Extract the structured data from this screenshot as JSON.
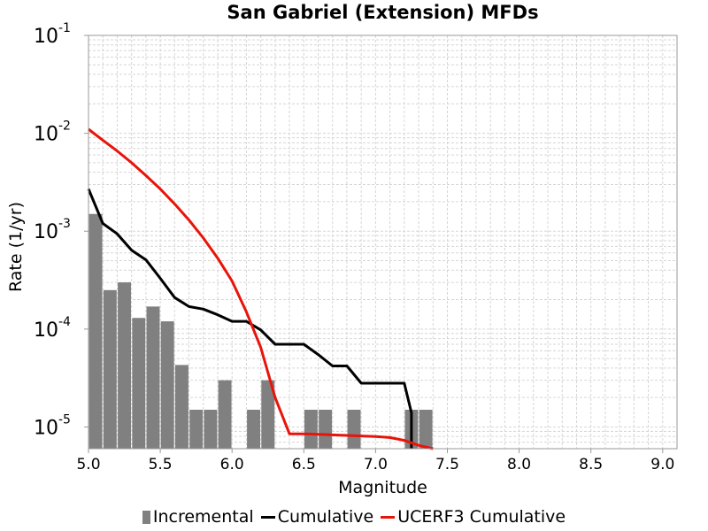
{
  "colors": {
    "incremental": "#808080",
    "cumulative": "#000000",
    "ucerf3": "#e8140a",
    "grid": "#d6d6d6",
    "axis": "#999999"
  },
  "chart_data": {
    "type": "bar",
    "title": "San Gabriel (Extension) MFDs",
    "xlabel": "Magnitude",
    "ylabel": "Rate (1/yr)",
    "xlim": [
      5.0,
      9.1
    ],
    "ylim": [
      6e-06,
      0.1
    ],
    "yscale": "log",
    "grid": true,
    "legend_position": "bottom",
    "x_ticks": [
      "5.0",
      "5.5",
      "6.0",
      "6.5",
      "7.0",
      "7.5",
      "8.0",
      "8.5",
      "9.0"
    ],
    "y_ticks": [
      {
        "base": "10",
        "exp": "-1",
        "value": 0.1
      },
      {
        "base": "10",
        "exp": "-2",
        "value": 0.01
      },
      {
        "base": "10",
        "exp": "-3",
        "value": 0.001
      },
      {
        "base": "10",
        "exp": "-4",
        "value": 0.0001
      },
      {
        "base": "10",
        "exp": "-5",
        "value": 1e-05
      }
    ],
    "legend": [
      "Incremental",
      "Cumulative",
      "UCERF3 Cumulative"
    ],
    "series": [
      {
        "name": "Incremental",
        "type": "bar",
        "x": [
          5.05,
          5.15,
          5.25,
          5.35,
          5.45,
          5.55,
          5.65,
          5.75,
          5.85,
          5.95,
          6.15,
          6.25,
          6.55,
          6.65,
          6.85,
          7.25,
          7.35
        ],
        "values": [
          0.0015,
          0.00025,
          0.0003,
          0.00013,
          0.00017,
          0.00012,
          4.3e-05,
          1.5e-05,
          1.5e-05,
          3e-05,
          1.5e-05,
          3e-05,
          1.5e-05,
          1.5e-05,
          1.5e-05,
          1.5e-05,
          1.5e-05
        ]
      },
      {
        "name": "Cumulative",
        "type": "line",
        "x": [
          5.0,
          5.1,
          5.2,
          5.3,
          5.4,
          5.5,
          5.6,
          5.7,
          5.8,
          5.9,
          6.0,
          6.1,
          6.2,
          6.3,
          6.4,
          6.5,
          6.6,
          6.7,
          6.8,
          6.9,
          7.0,
          7.1,
          7.2,
          7.25,
          7.25
        ],
        "values": [
          0.0027,
          0.0012,
          0.00094,
          0.00064,
          0.00051,
          0.00033,
          0.00021,
          0.00017,
          0.00016,
          0.00014,
          0.00012,
          0.00012,
          9.8e-05,
          7e-05,
          7e-05,
          7e-05,
          5.5e-05,
          4.2e-05,
          4.2e-05,
          2.8e-05,
          2.8e-05,
          2.8e-05,
          2.8e-05,
          1.4e-05,
          6e-06
        ]
      },
      {
        "name": "UCERF3 Cumulative",
        "type": "line",
        "x": [
          5.0,
          5.1,
          5.2,
          5.3,
          5.4,
          5.5,
          5.6,
          5.7,
          5.8,
          5.9,
          6.0,
          6.1,
          6.2,
          6.3,
          6.4,
          6.5,
          6.6,
          6.7,
          6.8,
          6.9,
          7.0,
          7.1,
          7.2,
          7.3,
          7.4
        ],
        "values": [
          0.011,
          0.0085,
          0.0066,
          0.005,
          0.0037,
          0.0027,
          0.0019,
          0.0013,
          0.00085,
          0.00053,
          0.00031,
          0.00015,
          6.5e-05,
          2e-05,
          8.5e-06,
          8.5e-06,
          8.4e-06,
          8.3e-06,
          8.2e-06,
          8.1e-06,
          8e-06,
          7.8e-06,
          7.3e-06,
          6.5e-06,
          6e-06
        ]
      }
    ]
  }
}
